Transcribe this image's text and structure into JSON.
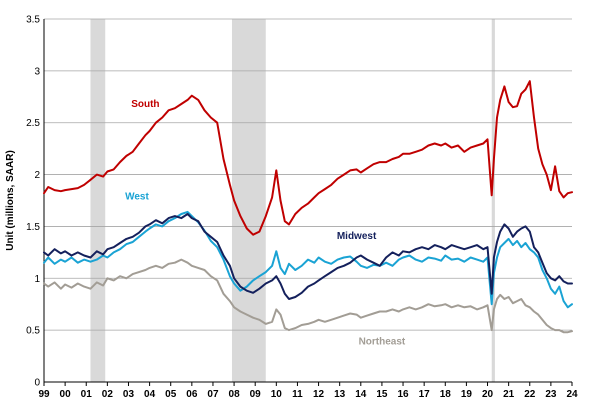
{
  "chart_data": {
    "type": "line",
    "title": "",
    "xlabel": "",
    "ylabel": "Unit (millions, SAAR)",
    "ylim": [
      0,
      3.5
    ],
    "xlim": [
      1999.0,
      2024.0
    ],
    "y_ticks": [
      "0",
      "0.5",
      "1",
      "1.5",
      "2",
      "2.5",
      "3",
      "3.5"
    ],
    "x_ticks": [
      "99",
      "00",
      "01",
      "02",
      "03",
      "04",
      "05",
      "06",
      "07",
      "08",
      "09",
      "10",
      "11",
      "12",
      "13",
      "14",
      "15",
      "16",
      "17",
      "18",
      "19",
      "20",
      "21",
      "22",
      "23",
      "24"
    ],
    "grid": "horizontal",
    "legend": "none",
    "recession_bands": [
      [
        2001.2,
        2001.9
      ],
      [
        2007.9,
        2009.5
      ]
    ],
    "recession_color": "#d9d9d9",
    "covid_band": [
      2020.2,
      2020.35
    ],
    "series": [
      {
        "name": "South",
        "color": "#c00000",
        "label_at": [
          2003.8,
          2.65
        ],
        "x": [
          1999.0,
          1999.2,
          1999.5,
          1999.8,
          2000.0,
          2000.3,
          2000.6,
          2000.9,
          2001.2,
          2001.5,
          2001.8,
          2002.0,
          2002.3,
          2002.6,
          2002.9,
          2003.2,
          2003.5,
          2003.8,
          2004.0,
          2004.3,
          2004.6,
          2004.9,
          2005.2,
          2005.5,
          2005.8,
          2006.0,
          2006.3,
          2006.6,
          2006.9,
          2007.2,
          2007.5,
          2007.8,
          2008.0,
          2008.3,
          2008.6,
          2008.9,
          2009.2,
          2009.5,
          2009.8,
          2010.0,
          2010.2,
          2010.4,
          2010.6,
          2010.9,
          2011.2,
          2011.5,
          2011.8,
          2012.0,
          2012.3,
          2012.6,
          2012.9,
          2013.2,
          2013.5,
          2013.8,
          2014.0,
          2014.3,
          2014.6,
          2014.9,
          2015.2,
          2015.5,
          2015.8,
          2016.0,
          2016.3,
          2016.6,
          2016.9,
          2017.2,
          2017.5,
          2017.8,
          2018.0,
          2018.3,
          2018.6,
          2018.9,
          2019.2,
          2019.5,
          2019.8,
          2020.0,
          2020.2,
          2020.3,
          2020.45,
          2020.6,
          2020.8,
          2021.0,
          2021.2,
          2021.4,
          2021.6,
          2021.8,
          2022.0,
          2022.2,
          2022.4,
          2022.6,
          2022.8,
          2023.0,
          2023.2,
          2023.4,
          2023.6,
          2023.8,
          2024.0
        ],
        "values": [
          1.82,
          1.88,
          1.85,
          1.84,
          1.85,
          1.86,
          1.87,
          1.9,
          1.95,
          2.0,
          1.98,
          2.03,
          2.05,
          2.12,
          2.18,
          2.22,
          2.3,
          2.38,
          2.42,
          2.5,
          2.55,
          2.62,
          2.64,
          2.68,
          2.72,
          2.76,
          2.72,
          2.62,
          2.55,
          2.5,
          2.15,
          1.9,
          1.75,
          1.6,
          1.48,
          1.42,
          1.45,
          1.6,
          1.78,
          2.04,
          1.75,
          1.55,
          1.52,
          1.62,
          1.68,
          1.72,
          1.78,
          1.82,
          1.86,
          1.9,
          1.96,
          2.0,
          2.04,
          2.05,
          2.02,
          2.06,
          2.1,
          2.12,
          2.12,
          2.15,
          2.17,
          2.2,
          2.2,
          2.22,
          2.24,
          2.28,
          2.3,
          2.28,
          2.3,
          2.26,
          2.28,
          2.22,
          2.26,
          2.28,
          2.3,
          2.34,
          1.8,
          2.15,
          2.55,
          2.72,
          2.85,
          2.7,
          2.65,
          2.66,
          2.78,
          2.82,
          2.9,
          2.55,
          2.25,
          2.1,
          2.0,
          1.85,
          2.08,
          1.84,
          1.78,
          1.82,
          1.83
        ]
      },
      {
        "name": "West",
        "color": "#1aa3d4",
        "label_at": [
          2003.4,
          1.76
        ],
        "x": [
          1999.0,
          1999.2,
          1999.5,
          1999.8,
          2000.0,
          2000.3,
          2000.6,
          2000.9,
          2001.2,
          2001.5,
          2001.8,
          2002.0,
          2002.3,
          2002.6,
          2002.9,
          2003.2,
          2003.5,
          2003.8,
          2004.0,
          2004.3,
          2004.6,
          2004.9,
          2005.2,
          2005.5,
          2005.8,
          2006.0,
          2006.3,
          2006.6,
          2006.9,
          2007.2,
          2007.5,
          2007.8,
          2008.0,
          2008.3,
          2008.6,
          2008.9,
          2009.2,
          2009.5,
          2009.8,
          2010.0,
          2010.2,
          2010.4,
          2010.6,
          2010.9,
          2011.2,
          2011.5,
          2011.8,
          2012.0,
          2012.3,
          2012.6,
          2012.9,
          2013.2,
          2013.5,
          2013.8,
          2014.0,
          2014.3,
          2014.6,
          2014.9,
          2015.2,
          2015.5,
          2015.8,
          2016.0,
          2016.3,
          2016.6,
          2016.9,
          2017.2,
          2017.5,
          2017.8,
          2018.0,
          2018.3,
          2018.6,
          2018.9,
          2019.2,
          2019.5,
          2019.8,
          2020.0,
          2020.2,
          2020.3,
          2020.45,
          2020.6,
          2020.8,
          2021.0,
          2021.2,
          2021.4,
          2021.6,
          2021.8,
          2022.0,
          2022.2,
          2022.4,
          2022.6,
          2022.8,
          2023.0,
          2023.2,
          2023.4,
          2023.6,
          2023.8,
          2024.0
        ],
        "values": [
          1.15,
          1.2,
          1.14,
          1.18,
          1.16,
          1.2,
          1.15,
          1.18,
          1.16,
          1.18,
          1.22,
          1.2,
          1.25,
          1.28,
          1.33,
          1.35,
          1.4,
          1.45,
          1.48,
          1.52,
          1.5,
          1.55,
          1.58,
          1.62,
          1.64,
          1.6,
          1.54,
          1.46,
          1.36,
          1.3,
          1.18,
          1.02,
          0.95,
          0.88,
          0.92,
          0.98,
          1.02,
          1.06,
          1.12,
          1.26,
          1.1,
          1.04,
          1.14,
          1.08,
          1.12,
          1.18,
          1.15,
          1.2,
          1.16,
          1.14,
          1.18,
          1.2,
          1.21,
          1.16,
          1.12,
          1.1,
          1.13,
          1.12,
          1.15,
          1.12,
          1.18,
          1.2,
          1.22,
          1.18,
          1.16,
          1.2,
          1.19,
          1.17,
          1.22,
          1.18,
          1.19,
          1.16,
          1.2,
          1.18,
          1.16,
          1.2,
          0.75,
          1.05,
          1.2,
          1.3,
          1.34,
          1.38,
          1.32,
          1.36,
          1.3,
          1.34,
          1.28,
          1.25,
          1.2,
          1.08,
          1.0,
          0.9,
          0.85,
          0.92,
          0.78,
          0.72,
          0.75
        ]
      },
      {
        "name": "Midwest",
        "color": "#14205c",
        "label_at": [
          2013.8,
          1.38
        ],
        "x": [
          1999.0,
          1999.2,
          1999.5,
          1999.8,
          2000.0,
          2000.3,
          2000.6,
          2000.9,
          2001.2,
          2001.5,
          2001.8,
          2002.0,
          2002.3,
          2002.6,
          2002.9,
          2003.2,
          2003.5,
          2003.8,
          2004.0,
          2004.3,
          2004.6,
          2004.9,
          2005.2,
          2005.5,
          2005.8,
          2006.0,
          2006.3,
          2006.6,
          2006.9,
          2007.2,
          2007.5,
          2007.8,
          2008.0,
          2008.3,
          2008.6,
          2008.9,
          2009.2,
          2009.5,
          2009.8,
          2010.0,
          2010.2,
          2010.4,
          2010.6,
          2010.9,
          2011.2,
          2011.5,
          2011.8,
          2012.0,
          2012.3,
          2012.6,
          2012.9,
          2013.2,
          2013.5,
          2013.8,
          2014.0,
          2014.3,
          2014.6,
          2014.9,
          2015.2,
          2015.5,
          2015.8,
          2016.0,
          2016.3,
          2016.6,
          2016.9,
          2017.2,
          2017.5,
          2017.8,
          2018.0,
          2018.3,
          2018.6,
          2018.9,
          2019.2,
          2019.5,
          2019.8,
          2020.0,
          2020.2,
          2020.3,
          2020.45,
          2020.6,
          2020.8,
          2021.0,
          2021.2,
          2021.4,
          2021.6,
          2021.8,
          2022.0,
          2022.2,
          2022.4,
          2022.6,
          2022.8,
          2023.0,
          2023.2,
          2023.4,
          2023.6,
          2023.8,
          2024.0
        ],
        "values": [
          1.25,
          1.22,
          1.28,
          1.24,
          1.26,
          1.22,
          1.25,
          1.22,
          1.2,
          1.26,
          1.23,
          1.28,
          1.3,
          1.34,
          1.38,
          1.4,
          1.44,
          1.5,
          1.52,
          1.56,
          1.53,
          1.58,
          1.6,
          1.58,
          1.62,
          1.58,
          1.55,
          1.45,
          1.4,
          1.35,
          1.22,
          1.12,
          1.0,
          0.92,
          0.88,
          0.86,
          0.9,
          0.95,
          0.98,
          1.02,
          0.95,
          0.85,
          0.8,
          0.82,
          0.86,
          0.92,
          0.95,
          0.98,
          1.02,
          1.06,
          1.1,
          1.12,
          1.15,
          1.2,
          1.22,
          1.18,
          1.15,
          1.12,
          1.2,
          1.25,
          1.22,
          1.26,
          1.25,
          1.28,
          1.3,
          1.28,
          1.32,
          1.3,
          1.28,
          1.32,
          1.3,
          1.28,
          1.3,
          1.32,
          1.28,
          1.3,
          0.85,
          1.2,
          1.35,
          1.45,
          1.52,
          1.48,
          1.4,
          1.45,
          1.48,
          1.5,
          1.45,
          1.3,
          1.25,
          1.15,
          1.05,
          1.0,
          0.98,
          1.02,
          0.97,
          0.95,
          0.95
        ]
      },
      {
        "name": "Northeast",
        "color": "#a29d95",
        "label_at": [
          2015.0,
          0.36
        ],
        "x": [
          1999.0,
          1999.2,
          1999.5,
          1999.8,
          2000.0,
          2000.3,
          2000.6,
          2000.9,
          2001.2,
          2001.5,
          2001.8,
          2002.0,
          2002.3,
          2002.6,
          2002.9,
          2003.2,
          2003.5,
          2003.8,
          2004.0,
          2004.3,
          2004.6,
          2004.9,
          2005.2,
          2005.5,
          2005.8,
          2006.0,
          2006.3,
          2006.6,
          2006.9,
          2007.2,
          2007.5,
          2007.8,
          2008.0,
          2008.3,
          2008.6,
          2008.9,
          2009.2,
          2009.5,
          2009.8,
          2010.0,
          2010.2,
          2010.4,
          2010.6,
          2010.9,
          2011.2,
          2011.5,
          2011.8,
          2012.0,
          2012.3,
          2012.6,
          2012.9,
          2013.2,
          2013.5,
          2013.8,
          2014.0,
          2014.3,
          2014.6,
          2014.9,
          2015.2,
          2015.5,
          2015.8,
          2016.0,
          2016.3,
          2016.6,
          2016.9,
          2017.2,
          2017.5,
          2017.8,
          2018.0,
          2018.3,
          2018.6,
          2018.9,
          2019.2,
          2019.5,
          2019.8,
          2020.0,
          2020.2,
          2020.3,
          2020.45,
          2020.6,
          2020.8,
          2021.0,
          2021.2,
          2021.4,
          2021.6,
          2021.8,
          2022.0,
          2022.2,
          2022.4,
          2022.6,
          2022.8,
          2023.0,
          2023.2,
          2023.4,
          2023.6,
          2023.8,
          2024.0
        ],
        "values": [
          0.95,
          0.92,
          0.96,
          0.9,
          0.94,
          0.91,
          0.95,
          0.92,
          0.9,
          0.96,
          0.93,
          1.0,
          0.98,
          1.02,
          1.0,
          1.04,
          1.06,
          1.08,
          1.1,
          1.12,
          1.1,
          1.14,
          1.15,
          1.18,
          1.15,
          1.12,
          1.1,
          1.08,
          1.02,
          0.98,
          0.85,
          0.78,
          0.72,
          0.68,
          0.65,
          0.62,
          0.6,
          0.56,
          0.58,
          0.7,
          0.65,
          0.52,
          0.5,
          0.52,
          0.55,
          0.56,
          0.58,
          0.6,
          0.58,
          0.6,
          0.62,
          0.64,
          0.66,
          0.65,
          0.62,
          0.64,
          0.66,
          0.68,
          0.68,
          0.7,
          0.68,
          0.7,
          0.72,
          0.7,
          0.72,
          0.75,
          0.73,
          0.74,
          0.75,
          0.72,
          0.74,
          0.72,
          0.73,
          0.7,
          0.72,
          0.74,
          0.5,
          0.7,
          0.8,
          0.84,
          0.8,
          0.82,
          0.76,
          0.78,
          0.8,
          0.74,
          0.72,
          0.68,
          0.65,
          0.6,
          0.55,
          0.52,
          0.5,
          0.5,
          0.48,
          0.48,
          0.49
        ]
      }
    ]
  }
}
